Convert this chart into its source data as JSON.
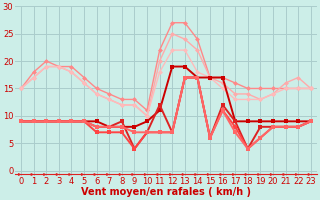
{
  "xlabel": "Vent moyen/en rafales ( km/h )",
  "bg_color": "#cceee8",
  "grid_color": "#aacccc",
  "ylim": [
    -1,
    30
  ],
  "yticks": [
    0,
    5,
    10,
    15,
    20,
    25,
    30
  ],
  "ytick_labels": [
    "0",
    "5",
    "10",
    "15",
    "20",
    "25",
    "30"
  ],
  "xlim": [
    -0.5,
    23.5
  ],
  "x_ticks": [
    0,
    1,
    2,
    3,
    4,
    5,
    6,
    7,
    8,
    9,
    10,
    11,
    12,
    13,
    14,
    15,
    16,
    17,
    18,
    19,
    20,
    21,
    22,
    23
  ],
  "series": [
    {
      "y": [
        15,
        18,
        20,
        19,
        19,
        17,
        15,
        14,
        13,
        13,
        11,
        22,
        27,
        27,
        24,
        17,
        17,
        16,
        15,
        15,
        15,
        15,
        15,
        15
      ],
      "color": "#ff8888",
      "lw": 1.0,
      "marker": "D",
      "ms": 2.5
    },
    {
      "y": [
        15,
        17,
        19,
        19,
        18,
        16,
        14,
        13,
        12,
        12,
        10,
        20,
        25,
        24,
        22,
        17,
        16,
        14,
        14,
        13,
        14,
        16,
        17,
        15
      ],
      "color": "#ffaaaa",
      "lw": 1.0,
      "marker": "D",
      "ms": 2.5
    },
    {
      "y": [
        15,
        17,
        19,
        19,
        18,
        16,
        14,
        13,
        12,
        12,
        10,
        18,
        22,
        22,
        18,
        17,
        15,
        13,
        13,
        13,
        14,
        15,
        15,
        15
      ],
      "color": "#ffbbbb",
      "lw": 1.0,
      "marker": "D",
      "ms": 2.5
    },
    {
      "y": [
        9,
        9,
        9,
        9,
        9,
        9,
        9,
        8,
        8,
        8,
        9,
        11,
        19,
        19,
        17,
        17,
        17,
        9,
        9,
        9,
        9,
        9,
        9,
        9
      ],
      "color": "#cc0000",
      "lw": 1.4,
      "marker": "s",
      "ms": 2.5
    },
    {
      "y": [
        9,
        9,
        9,
        9,
        9,
        9,
        8,
        8,
        9,
        4,
        7,
        12,
        7,
        17,
        17,
        6,
        12,
        9,
        4,
        8,
        8,
        8,
        8,
        9
      ],
      "color": "#dd2222",
      "lw": 1.4,
      "marker": "s",
      "ms": 2.5
    },
    {
      "y": [
        9,
        9,
        9,
        9,
        9,
        9,
        7,
        7,
        7,
        4,
        7,
        7,
        7,
        17,
        17,
        6,
        11,
        8,
        4,
        6,
        8,
        8,
        8,
        9
      ],
      "color": "#ff4444",
      "lw": 1.4,
      "marker": "s",
      "ms": 2.5
    },
    {
      "y": [
        9,
        9,
        9,
        9,
        9,
        9,
        8,
        8,
        8,
        7,
        7,
        7,
        7,
        17,
        17,
        6,
        11,
        7,
        4,
        6,
        8,
        8,
        8,
        9
      ],
      "color": "#ff6666",
      "lw": 1.4,
      "marker": "s",
      "ms": 2.5
    }
  ],
  "arrow_color": "#dd2222",
  "red_line_y": -0.7,
  "xlabel_color": "#cc0000",
  "xlabel_fontsize": 7,
  "tick_color": "#cc0000",
  "tick_fontsize": 6
}
